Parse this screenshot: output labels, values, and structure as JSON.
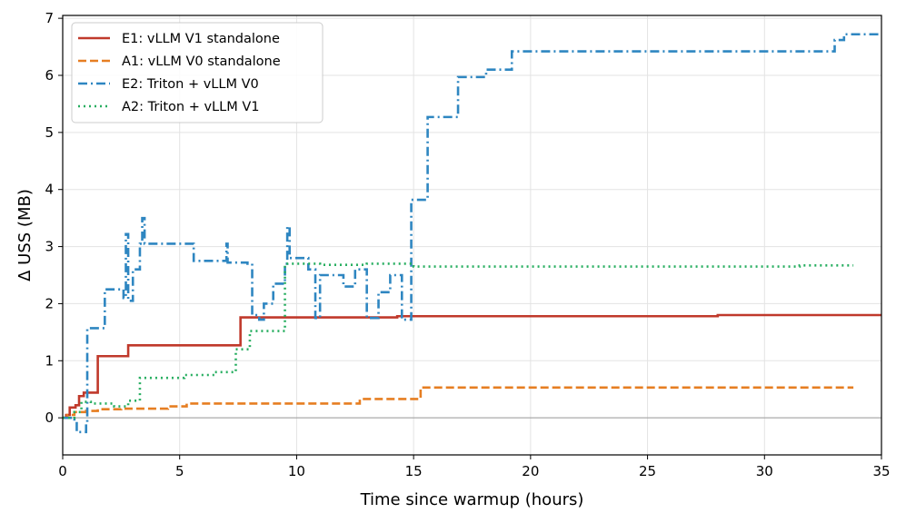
{
  "chart_data": {
    "type": "line",
    "xlabel": "Time since warmup (hours)",
    "ylabel": "Δ USS (MB)",
    "xlim": [
      0,
      35
    ],
    "ylim": [
      -0.65,
      7.05
    ],
    "xticks": [
      0,
      5,
      10,
      15,
      20,
      25,
      30,
      35
    ],
    "yticks": [
      0,
      1,
      2,
      3,
      4,
      5,
      6,
      7
    ],
    "grid": true,
    "zero_line": true,
    "legend_position": "top-left",
    "series": [
      {
        "name": "E1: vLLM V1 standalone",
        "color": "#c0392b",
        "dash": "solid",
        "step": true,
        "points": [
          [
            0,
            0
          ],
          [
            0.15,
            0.05
          ],
          [
            0.3,
            0.18
          ],
          [
            0.55,
            0.22
          ],
          [
            0.7,
            0.38
          ],
          [
            0.9,
            0.44
          ],
          [
            1.5,
            1.08
          ],
          [
            2.8,
            1.27
          ],
          [
            7.6,
            1.76
          ],
          [
            14.3,
            1.78
          ],
          [
            28,
            1.8
          ],
          [
            35,
            1.81
          ]
        ]
      },
      {
        "name": "A1: vLLM V0 standalone",
        "color": "#e67e22",
        "dash": "dashed",
        "step": true,
        "points": [
          [
            0,
            0
          ],
          [
            0.2,
            0.05
          ],
          [
            0.5,
            0.1
          ],
          [
            1,
            0.12
          ],
          [
            1.5,
            0.15
          ],
          [
            2.5,
            0.16
          ],
          [
            4.5,
            0.2
          ],
          [
            5.3,
            0.25
          ],
          [
            12.7,
            0.33
          ],
          [
            15.3,
            0.53
          ],
          [
            33.8,
            0.53
          ]
        ]
      },
      {
        "name": "E2: Triton + vLLM V0",
        "color": "#2e86c1",
        "dash": "dashdot",
        "step": true,
        "points": [
          [
            0,
            0
          ],
          [
            0.5,
            -0.05
          ],
          [
            0.6,
            -0.25
          ],
          [
            0.9,
            -0.25
          ],
          [
            1,
            -0.1
          ],
          [
            1.05,
            1.57
          ],
          [
            1.8,
            2.25
          ],
          [
            2.6,
            2.1
          ],
          [
            2.7,
            3.22
          ],
          [
            2.8,
            2.05
          ],
          [
            3.0,
            2.6
          ],
          [
            3.3,
            3.05
          ],
          [
            3.4,
            3.5
          ],
          [
            3.5,
            3.05
          ],
          [
            5.6,
            2.75
          ],
          [
            7.0,
            3.05
          ],
          [
            7.05,
            2.72
          ],
          [
            7.9,
            2.7
          ],
          [
            8.1,
            1.8
          ],
          [
            8.4,
            1.72
          ],
          [
            8.6,
            2.0
          ],
          [
            9,
            2.35
          ],
          [
            9.5,
            2.7
          ],
          [
            9.6,
            3.35
          ],
          [
            9.7,
            2.8
          ],
          [
            10.5,
            2.6
          ],
          [
            10.8,
            1.75
          ],
          [
            11,
            2.5
          ],
          [
            12,
            2.3
          ],
          [
            12.5,
            2.6
          ],
          [
            13,
            1.75
          ],
          [
            13.5,
            2.2
          ],
          [
            14,
            2.5
          ],
          [
            14.5,
            1.72
          ],
          [
            14.9,
            3.82
          ],
          [
            15.6,
            5.27
          ],
          [
            16.9,
            5.97
          ],
          [
            18.1,
            6.1
          ],
          [
            19.2,
            6.42
          ],
          [
            33,
            6.62
          ],
          [
            33.4,
            6.72
          ],
          [
            35,
            6.72
          ]
        ]
      },
      {
        "name": "A2: Triton + vLLM V1",
        "color": "#27ae60",
        "dash": "dotted",
        "step": true,
        "points": [
          [
            0,
            0
          ],
          [
            0.5,
            0.1
          ],
          [
            0.8,
            0.28
          ],
          [
            1.2,
            0.25
          ],
          [
            2,
            0.25
          ],
          [
            2.2,
            0.2
          ],
          [
            2.8,
            0.3
          ],
          [
            3.3,
            0.7
          ],
          [
            5.2,
            0.75
          ],
          [
            6.5,
            0.8
          ],
          [
            7.4,
            1.2
          ],
          [
            8.0,
            1.52
          ],
          [
            9.5,
            2.7
          ],
          [
            11,
            2.68
          ],
          [
            13,
            2.7
          ],
          [
            15,
            2.65
          ],
          [
            20,
            2.65
          ],
          [
            31.5,
            2.67
          ],
          [
            33.8,
            2.67
          ]
        ]
      }
    ]
  }
}
